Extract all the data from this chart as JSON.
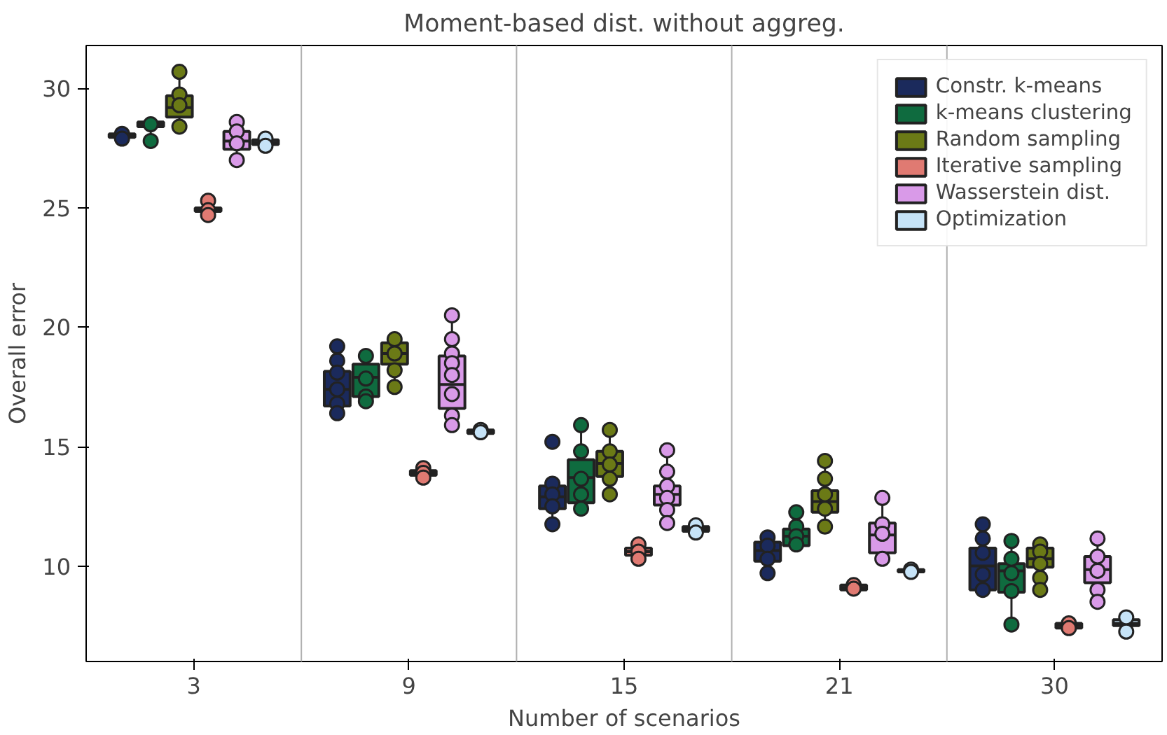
{
  "chart_data": {
    "type": "box",
    "title": "Moment-based dist. without aggreg.",
    "xlabel": "Number of scenarios",
    "ylabel": "Overall error",
    "categories": [
      "3",
      "9",
      "15",
      "21",
      "30"
    ],
    "ylim": [
      6.0,
      31.8
    ],
    "yticks": [
      10,
      15,
      20,
      25,
      30
    ],
    "grid": "x",
    "legend": "top right",
    "series": [
      {
        "name": "Constr. k-means",
        "color": "#1b2a5c",
        "boxes": [
          {
            "low": 27.85,
            "q1": 27.95,
            "median": 28.05,
            "q3": 28.1,
            "high": 28.15,
            "outliers": [
              28.1,
              27.9
            ]
          },
          {
            "low": 16.4,
            "q1": 16.7,
            "median": 17.4,
            "q3": 18.15,
            "high": 19.2,
            "outliers": [
              19.2,
              18.6,
              18.1,
              17.4,
              16.8,
              16.4
            ]
          },
          {
            "low": 11.75,
            "q1": 12.4,
            "median": 12.9,
            "q3": 13.35,
            "high": 13.5,
            "outliers": [
              15.2,
              13.45,
              13.0,
              12.5,
              11.75
            ]
          },
          {
            "low": 9.7,
            "q1": 10.2,
            "median": 10.65,
            "q3": 11.0,
            "high": 11.2,
            "outliers": [
              11.2,
              10.85,
              10.3,
              9.7
            ]
          },
          {
            "low": 8.7,
            "q1": 9.0,
            "median": 10.0,
            "q3": 10.75,
            "high": 11.8,
            "outliers": [
              11.75,
              11.15,
              10.55,
              9.65,
              9.0
            ]
          }
        ]
      },
      {
        "name": "k-means clustering",
        "color": "#0f6b3f",
        "boxes": [
          {
            "low": 27.6,
            "q1": 28.4,
            "median": 28.5,
            "q3": 28.6,
            "high": 28.8,
            "outliers": [
              28.5,
              27.8
            ]
          },
          {
            "low": 16.9,
            "q1": 17.1,
            "median": 17.9,
            "q3": 18.45,
            "high": 18.8,
            "outliers": [
              18.8,
              17.85,
              17.1,
              16.9
            ]
          },
          {
            "low": 12.4,
            "q1": 12.65,
            "median": 13.7,
            "q3": 14.45,
            "high": 15.9,
            "outliers": [
              15.9,
              14.8,
              13.65,
              13.0,
              12.4
            ]
          },
          {
            "low": 10.85,
            "q1": 10.85,
            "median": 11.25,
            "q3": 11.55,
            "high": 12.25,
            "outliers": [
              12.25,
              11.65,
              11.25,
              10.9
            ]
          },
          {
            "low": 7.6,
            "q1": 8.9,
            "median": 9.8,
            "q3": 10.1,
            "high": 11.05,
            "outliers": [
              11.05,
              10.3,
              9.7,
              8.95,
              7.55
            ]
          }
        ]
      },
      {
        "name": "Random sampling",
        "color": "#6b7a16",
        "boxes": [
          {
            "low": 28.4,
            "q1": 28.8,
            "median": 29.2,
            "q3": 29.7,
            "high": 30.7,
            "outliers": [
              30.7,
              29.75,
              29.3,
              28.4
            ]
          },
          {
            "low": 17.5,
            "q1": 18.45,
            "median": 18.9,
            "q3": 19.35,
            "high": 19.6,
            "outliers": [
              19.5,
              18.9,
              18.2,
              17.5
            ]
          },
          {
            "low": 13.0,
            "q1": 13.75,
            "median": 14.3,
            "q3": 14.8,
            "high": 15.7,
            "outliers": [
              15.7,
              14.8,
              14.25,
              13.65,
              13.0
            ]
          },
          {
            "low": 11.7,
            "q1": 12.25,
            "median": 12.7,
            "q3": 13.15,
            "high": 14.4,
            "outliers": [
              14.4,
              13.65,
              13.0,
              12.4,
              11.65
            ]
          },
          {
            "low": 9.0,
            "q1": 9.95,
            "median": 10.3,
            "q3": 10.75,
            "high": 10.9,
            "outliers": [
              10.9,
              10.6,
              10.1,
              9.5,
              9.0
            ]
          }
        ]
      },
      {
        "name": "Iterative sampling",
        "color": "#e07a72",
        "boxes": [
          {
            "low": 24.7,
            "q1": 24.85,
            "median": 24.95,
            "q3": 25.0,
            "high": 25.3,
            "outliers": [
              25.3,
              24.9,
              24.7
            ]
          },
          {
            "low": 13.7,
            "q1": 13.8,
            "median": 13.9,
            "q3": 14.0,
            "high": 14.1,
            "outliers": [
              14.1,
              13.9,
              13.7
            ]
          },
          {
            "low": 10.2,
            "q1": 10.45,
            "median": 10.6,
            "q3": 10.75,
            "high": 11.0,
            "outliers": [
              10.9,
              10.6,
              10.3
            ]
          },
          {
            "low": 9.0,
            "q1": 9.0,
            "median": 9.1,
            "q3": 9.2,
            "high": 9.2,
            "outliers": [
              9.2,
              9.05
            ]
          },
          {
            "low": 7.4,
            "q1": 7.4,
            "median": 7.5,
            "q3": 7.6,
            "high": 7.6,
            "outliers": [
              7.6,
              7.4
            ]
          }
        ]
      },
      {
        "name": "Wasserstein dist.",
        "color": "#d99ae8",
        "boxes": [
          {
            "low": 27.0,
            "q1": 27.45,
            "median": 27.8,
            "q3": 28.2,
            "high": 28.6,
            "outliers": [
              28.6,
              28.2,
              27.7,
              27.0
            ]
          },
          {
            "low": 15.9,
            "q1": 16.6,
            "median": 17.6,
            "q3": 18.8,
            "high": 20.5,
            "outliers": [
              20.5,
              19.5,
              18.9,
              18.5,
              18.0,
              17.2,
              16.3,
              15.9
            ]
          },
          {
            "low": 11.6,
            "q1": 12.55,
            "median": 13.0,
            "q3": 13.35,
            "high": 14.9,
            "outliers": [
              14.85,
              13.95,
              13.35,
              12.85,
              12.35,
              11.8
            ]
          },
          {
            "low": 10.2,
            "q1": 10.55,
            "median": 11.3,
            "q3": 11.8,
            "high": 12.9,
            "outliers": [
              12.85,
              11.75,
              11.35,
              10.3
            ]
          },
          {
            "low": 8.5,
            "q1": 9.3,
            "median": 9.85,
            "q3": 10.4,
            "high": 11.2,
            "outliers": [
              11.15,
              10.4,
              9.8,
              9.0,
              8.5
            ]
          }
        ]
      },
      {
        "name": "Optimization",
        "color": "#c6e3f7",
        "boxes": [
          {
            "low": 27.6,
            "q1": 27.65,
            "median": 27.75,
            "q3": 27.85,
            "high": 27.9,
            "outliers": [
              27.9,
              27.6
            ]
          },
          {
            "low": 15.55,
            "q1": 15.55,
            "median": 15.6,
            "q3": 15.7,
            "high": 15.7,
            "outliers": [
              15.7,
              15.6
            ]
          },
          {
            "low": 11.4,
            "q1": 11.45,
            "median": 11.55,
            "q3": 11.65,
            "high": 11.7,
            "outliers": [
              11.7,
              11.4
            ]
          },
          {
            "low": 9.75,
            "q1": 9.75,
            "median": 9.8,
            "q3": 9.85,
            "high": 9.85,
            "outliers": [
              9.85,
              9.75
            ]
          },
          {
            "low": 7.25,
            "q1": 7.5,
            "median": 7.6,
            "q3": 7.75,
            "high": 7.85,
            "outliers": [
              7.85,
              7.25
            ]
          }
        ]
      }
    ]
  }
}
